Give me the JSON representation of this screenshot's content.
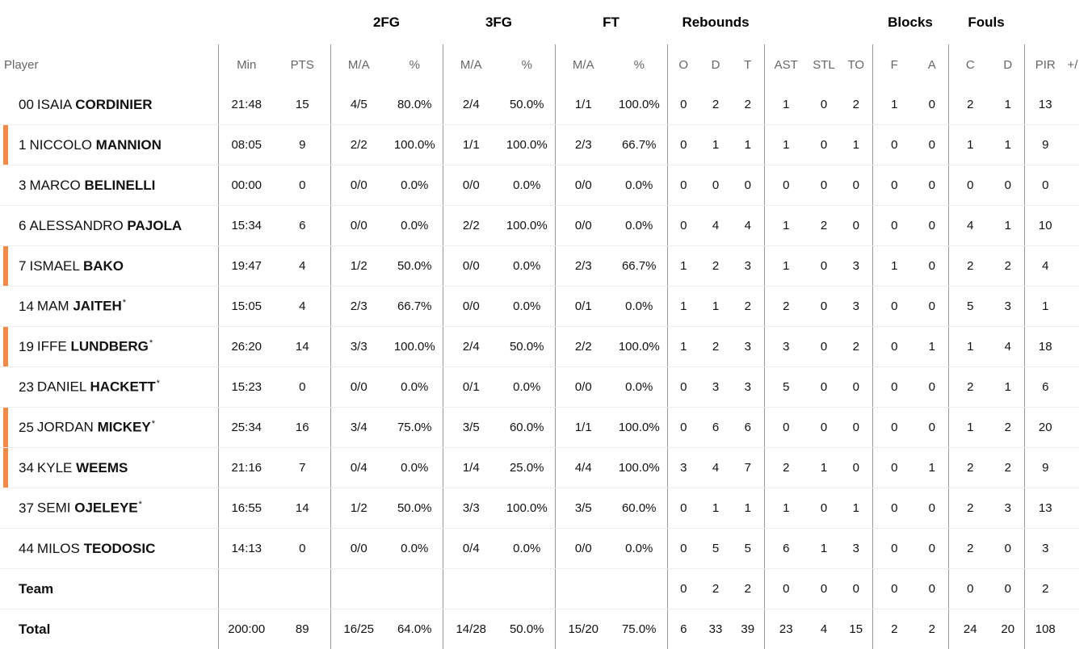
{
  "group_headers": {
    "fg2": "2FG",
    "fg3": "3FG",
    "ft": "FT",
    "rebounds": "Rebounds",
    "blocks": "Blocks",
    "fouls": "Fouls"
  },
  "column_headers": {
    "player": "Player",
    "min": "Min",
    "pts": "PTS",
    "fg2_ma": "M/A",
    "fg2_pct": "%",
    "fg3_ma": "M/A",
    "fg3_pct": "%",
    "ft_ma": "M/A",
    "ft_pct": "%",
    "reb_o": "O",
    "reb_d": "D",
    "reb_t": "T",
    "ast": "AST",
    "stl": "STL",
    "to": "TO",
    "blk_f": "F",
    "blk_a": "A",
    "foul_c": "C",
    "foul_d": "D",
    "pir": "PIR",
    "pm": "+/"
  },
  "players": [
    {
      "num": "00",
      "first": "ISAIA",
      "last": "CORDINIER",
      "starter": false,
      "marker": false,
      "min": "21:48",
      "pts": "15",
      "fg2_ma": "4/5",
      "fg2_pct": "80.0%",
      "fg3_ma": "2/4",
      "fg3_pct": "50.0%",
      "ft_ma": "1/1",
      "ft_pct": "100.0%",
      "reb_o": "0",
      "reb_d": "2",
      "reb_t": "2",
      "ast": "1",
      "stl": "0",
      "to": "2",
      "blk_f": "1",
      "blk_a": "0",
      "foul_c": "2",
      "foul_d": "1",
      "pir": "13"
    },
    {
      "num": "1",
      "first": "NICCOLO",
      "last": "MANNION",
      "starter": false,
      "marker": true,
      "min": "08:05",
      "pts": "9",
      "fg2_ma": "2/2",
      "fg2_pct": "100.0%",
      "fg3_ma": "1/1",
      "fg3_pct": "100.0%",
      "ft_ma": "2/3",
      "ft_pct": "66.7%",
      "reb_o": "0",
      "reb_d": "1",
      "reb_t": "1",
      "ast": "1",
      "stl": "0",
      "to": "1",
      "blk_f": "0",
      "blk_a": "0",
      "foul_c": "1",
      "foul_d": "1",
      "pir": "9"
    },
    {
      "num": "3",
      "first": "MARCO",
      "last": "BELINELLI",
      "starter": false,
      "marker": false,
      "min": "00:00",
      "pts": "0",
      "fg2_ma": "0/0",
      "fg2_pct": "0.0%",
      "fg3_ma": "0/0",
      "fg3_pct": "0.0%",
      "ft_ma": "0/0",
      "ft_pct": "0.0%",
      "reb_o": "0",
      "reb_d": "0",
      "reb_t": "0",
      "ast": "0",
      "stl": "0",
      "to": "0",
      "blk_f": "0",
      "blk_a": "0",
      "foul_c": "0",
      "foul_d": "0",
      "pir": "0"
    },
    {
      "num": "6",
      "first": "ALESSANDRO",
      "last": "PAJOLA",
      "starter": false,
      "marker": false,
      "min": "15:34",
      "pts": "6",
      "fg2_ma": "0/0",
      "fg2_pct": "0.0%",
      "fg3_ma": "2/2",
      "fg3_pct": "100.0%",
      "ft_ma": "0/0",
      "ft_pct": "0.0%",
      "reb_o": "0",
      "reb_d": "4",
      "reb_t": "4",
      "ast": "1",
      "stl": "2",
      "to": "0",
      "blk_f": "0",
      "blk_a": "0",
      "foul_c": "4",
      "foul_d": "1",
      "pir": "10"
    },
    {
      "num": "7",
      "first": "ISMAEL",
      "last": "BAKO",
      "starter": false,
      "marker": true,
      "min": "19:47",
      "pts": "4",
      "fg2_ma": "1/2",
      "fg2_pct": "50.0%",
      "fg3_ma": "0/0",
      "fg3_pct": "0.0%",
      "ft_ma": "2/3",
      "ft_pct": "66.7%",
      "reb_o": "1",
      "reb_d": "2",
      "reb_t": "3",
      "ast": "1",
      "stl": "0",
      "to": "3",
      "blk_f": "1",
      "blk_a": "0",
      "foul_c": "2",
      "foul_d": "2",
      "pir": "4"
    },
    {
      "num": "14",
      "first": "MAM",
      "last": "JAITEH",
      "starter": true,
      "marker": false,
      "min": "15:05",
      "pts": "4",
      "fg2_ma": "2/3",
      "fg2_pct": "66.7%",
      "fg3_ma": "0/0",
      "fg3_pct": "0.0%",
      "ft_ma": "0/1",
      "ft_pct": "0.0%",
      "reb_o": "1",
      "reb_d": "1",
      "reb_t": "2",
      "ast": "2",
      "stl": "0",
      "to": "3",
      "blk_f": "0",
      "blk_a": "0",
      "foul_c": "5",
      "foul_d": "3",
      "pir": "1"
    },
    {
      "num": "19",
      "first": "IFFE",
      "last": "LUNDBERG",
      "starter": true,
      "marker": true,
      "min": "26:20",
      "pts": "14",
      "fg2_ma": "3/3",
      "fg2_pct": "100.0%",
      "fg3_ma": "2/4",
      "fg3_pct": "50.0%",
      "ft_ma": "2/2",
      "ft_pct": "100.0%",
      "reb_o": "1",
      "reb_d": "2",
      "reb_t": "3",
      "ast": "3",
      "stl": "0",
      "to": "2",
      "blk_f": "0",
      "blk_a": "1",
      "foul_c": "1",
      "foul_d": "4",
      "pir": "18"
    },
    {
      "num": "23",
      "first": "DANIEL",
      "last": "HACKETT",
      "starter": true,
      "marker": false,
      "min": "15:23",
      "pts": "0",
      "fg2_ma": "0/0",
      "fg2_pct": "0.0%",
      "fg3_ma": "0/1",
      "fg3_pct": "0.0%",
      "ft_ma": "0/0",
      "ft_pct": "0.0%",
      "reb_o": "0",
      "reb_d": "3",
      "reb_t": "3",
      "ast": "5",
      "stl": "0",
      "to": "0",
      "blk_f": "0",
      "blk_a": "0",
      "foul_c": "2",
      "foul_d": "1",
      "pir": "6"
    },
    {
      "num": "25",
      "first": "JORDAN",
      "last": "MICKEY",
      "starter": true,
      "marker": true,
      "min": "25:34",
      "pts": "16",
      "fg2_ma": "3/4",
      "fg2_pct": "75.0%",
      "fg3_ma": "3/5",
      "fg3_pct": "60.0%",
      "ft_ma": "1/1",
      "ft_pct": "100.0%",
      "reb_o": "0",
      "reb_d": "6",
      "reb_t": "6",
      "ast": "0",
      "stl": "0",
      "to": "0",
      "blk_f": "0",
      "blk_a": "0",
      "foul_c": "1",
      "foul_d": "2",
      "pir": "20"
    },
    {
      "num": "34",
      "first": "KYLE",
      "last": "WEEMS",
      "starter": false,
      "marker": true,
      "min": "21:16",
      "pts": "7",
      "fg2_ma": "0/4",
      "fg2_pct": "0.0%",
      "fg3_ma": "1/4",
      "fg3_pct": "25.0%",
      "ft_ma": "4/4",
      "ft_pct": "100.0%",
      "reb_o": "3",
      "reb_d": "4",
      "reb_t": "7",
      "ast": "2",
      "stl": "1",
      "to": "0",
      "blk_f": "0",
      "blk_a": "1",
      "foul_c": "2",
      "foul_d": "2",
      "pir": "9"
    },
    {
      "num": "37",
      "first": "SEMI",
      "last": "OJELEYE",
      "starter": true,
      "marker": false,
      "min": "16:55",
      "pts": "14",
      "fg2_ma": "1/2",
      "fg2_pct": "50.0%",
      "fg3_ma": "3/3",
      "fg3_pct": "100.0%",
      "ft_ma": "3/5",
      "ft_pct": "60.0%",
      "reb_o": "0",
      "reb_d": "1",
      "reb_t": "1",
      "ast": "1",
      "stl": "0",
      "to": "1",
      "blk_f": "0",
      "blk_a": "0",
      "foul_c": "2",
      "foul_d": "3",
      "pir": "13"
    },
    {
      "num": "44",
      "first": "MILOS",
      "last": "TEODOSIC",
      "starter": false,
      "marker": false,
      "min": "14:13",
      "pts": "0",
      "fg2_ma": "0/0",
      "fg2_pct": "0.0%",
      "fg3_ma": "0/4",
      "fg3_pct": "0.0%",
      "ft_ma": "0/0",
      "ft_pct": "0.0%",
      "reb_o": "0",
      "reb_d": "5",
      "reb_t": "5",
      "ast": "6",
      "stl": "1",
      "to": "3",
      "blk_f": "0",
      "blk_a": "0",
      "foul_c": "2",
      "foul_d": "0",
      "pir": "3"
    }
  ],
  "team_row": {
    "label": "Team",
    "min": "",
    "pts": "",
    "fg2_ma": "",
    "fg2_pct": "",
    "fg3_ma": "",
    "fg3_pct": "",
    "ft_ma": "",
    "ft_pct": "",
    "reb_o": "0",
    "reb_d": "2",
    "reb_t": "2",
    "ast": "0",
    "stl": "0",
    "to": "0",
    "blk_f": "0",
    "blk_a": "0",
    "foul_c": "0",
    "foul_d": "0",
    "pir": "2"
  },
  "total_row": {
    "label": "Total",
    "min": "200:00",
    "pts": "89",
    "fg2_ma": "16/25",
    "fg2_pct": "64.0%",
    "fg3_ma": "14/28",
    "fg3_pct": "50.0%",
    "ft_ma": "15/20",
    "ft_pct": "75.0%",
    "reb_o": "6",
    "reb_d": "33",
    "reb_t": "39",
    "ast": "23",
    "stl": "4",
    "to": "15",
    "blk_f": "2",
    "blk_a": "2",
    "foul_c": "24",
    "foul_d": "20",
    "pir": "108"
  },
  "colors": {
    "marker": "#f58a46",
    "divider": "#999999",
    "row_border": "#ececec",
    "header_text": "#666666"
  }
}
